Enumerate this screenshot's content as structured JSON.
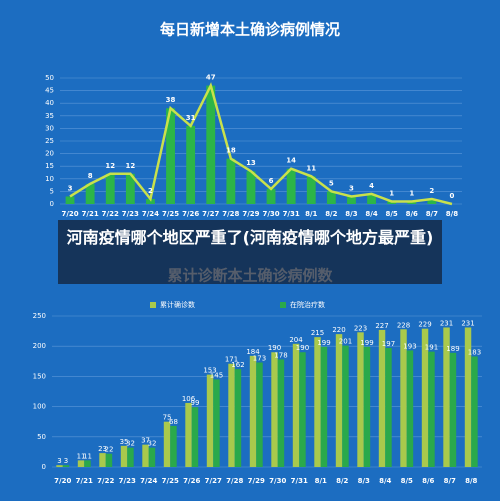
{
  "chart_data": [
    {
      "type": "bar",
      "title": "每日新增本土确诊病例情况",
      "categories": [
        "7/20",
        "7/21",
        "7/22",
        "7/23",
        "7/24",
        "7/25",
        "7/26",
        "7/27",
        "7/28",
        "7/29",
        "7/30",
        "7/31",
        "8/1",
        "8/2",
        "8/3",
        "8/4",
        "8/5",
        "8/6",
        "8/7",
        "8/8"
      ],
      "values": [
        3,
        8,
        12,
        12,
        2,
        38,
        31,
        47,
        18,
        13,
        6,
        14,
        11,
        5,
        3,
        4,
        1,
        1,
        2,
        0
      ],
      "color": "#2cb548",
      "line_color": "#c9e14b",
      "ylim": [
        0,
        50
      ],
      "yticks": [
        0,
        5,
        10,
        15,
        20,
        25,
        30,
        35,
        40,
        45,
        50
      ],
      "grid": true
    },
    {
      "type": "grouped_bar",
      "title": "累计诊断本土确诊病例数",
      "categories": [
        "7/20",
        "7/21",
        "7/22",
        "7/23",
        "7/24",
        "7/25",
        "7/26",
        "7/27",
        "7/28",
        "7/29",
        "7/30",
        "7/31",
        "8/1",
        "8/2",
        "8/3",
        "8/4",
        "8/5",
        "8/6",
        "8/7",
        "8/8"
      ],
      "series": [
        {
          "name": "累计确诊数",
          "color": "#a9c94c",
          "values": [
            3,
            11,
            23,
            35,
            37,
            75,
            106,
            153,
            171,
            184,
            190,
            204,
            215,
            220,
            223,
            227,
            228,
            229,
            231,
            231
          ]
        },
        {
          "name": "在院治疗数",
          "color": "#2aa94b",
          "values": [
            3,
            11,
            22,
            32,
            32,
            68,
            99,
            145,
            162,
            173,
            178,
            190,
            199,
            201,
            199,
            197,
            193,
            191,
            189,
            183
          ]
        }
      ],
      "ylim": [
        0,
        250
      ],
      "yticks": [
        0,
        50,
        100,
        150,
        200,
        250
      ],
      "grid": true,
      "legend": "top"
    }
  ],
  "overlay": {
    "text": "河南疫情哪个地区严重了(河南疫情哪个地方最严重)"
  }
}
